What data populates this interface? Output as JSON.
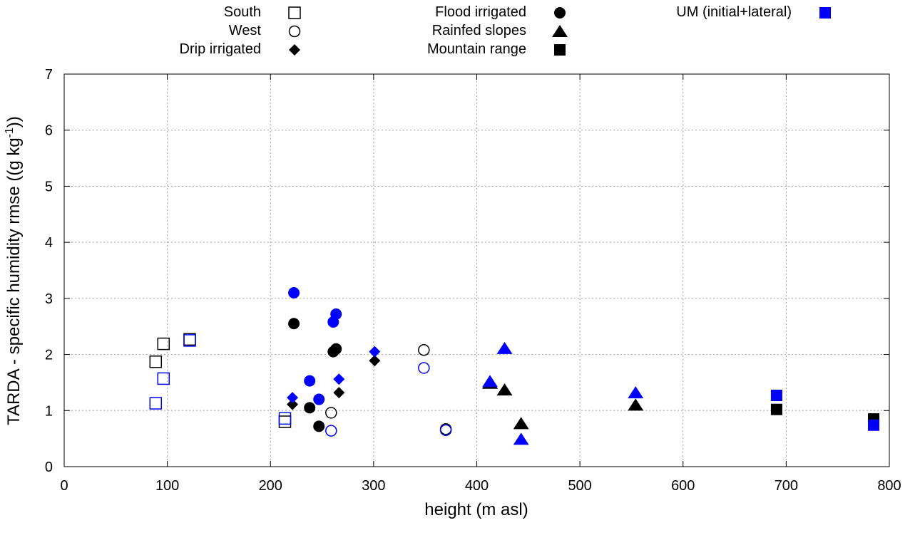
{
  "colors": {
    "tarda": "#000000",
    "um": "#0000ff",
    "grid": "#a0a0a0"
  },
  "chart_data": {
    "type": "scatter",
    "xlabel": "height (m asl)",
    "ylabel": "TARDA - specific humidity rmse ((g kg-1))",
    "ylabel_parts": {
      "main": "TARDA - specific humidity rmse ((g kg",
      "sup": "-1",
      "end": "))"
    },
    "xlim": [
      0,
      800
    ],
    "ylim": [
      0,
      7
    ],
    "xticks": [
      0,
      100,
      200,
      300,
      400,
      500,
      600,
      700,
      800
    ],
    "yticks": [
      0,
      1,
      2,
      3,
      4,
      5,
      6,
      7
    ],
    "grid": true,
    "legend_position": "top, outside plot, three columns",
    "legend": [
      {
        "label": "South",
        "marker": "open-square",
        "color": "#000000"
      },
      {
        "label": "West",
        "marker": "open-circle",
        "color": "#000000"
      },
      {
        "label": "Drip irrigated",
        "marker": "diamond",
        "color": "#000000"
      },
      {
        "label": "Flood irrigated",
        "marker": "circle",
        "color": "#000000"
      },
      {
        "label": "Rainfed slopes",
        "marker": "triangle",
        "color": "#000000"
      },
      {
        "label": "Mountain range",
        "marker": "square",
        "color": "#000000"
      },
      {
        "label": "UM (initial+lateral)",
        "marker": "square",
        "color": "#0000ff"
      }
    ],
    "series": [
      {
        "name": "South",
        "marker": "open-square",
        "color": "#000000",
        "points": [
          [
            88.7,
            1.87
          ],
          [
            96.3,
            2.19
          ],
          [
            121.7,
            2.27
          ],
          [
            214,
            0.8
          ]
        ]
      },
      {
        "name": "South (UM)",
        "marker": "open-square",
        "color": "#0000ff",
        "points": [
          [
            88.7,
            1.13
          ],
          [
            96.3,
            1.57
          ],
          [
            121.7,
            2.25
          ],
          [
            214,
            0.86
          ]
        ]
      },
      {
        "name": "West",
        "marker": "open-circle",
        "color": "#000000",
        "points": [
          [
            258.8,
            0.96
          ],
          [
            348.7,
            2.08
          ],
          [
            370,
            0.67
          ]
        ]
      },
      {
        "name": "West (UM)",
        "marker": "open-circle",
        "color": "#0000ff",
        "points": [
          [
            258.8,
            0.64
          ],
          [
            348.7,
            1.76
          ],
          [
            370,
            0.65
          ]
        ]
      },
      {
        "name": "Drip irrigated",
        "marker": "diamond",
        "color": "#000000",
        "points": [
          [
            221.3,
            1.11
          ],
          [
            266.4,
            1.32
          ],
          [
            301,
            1.89
          ]
        ]
      },
      {
        "name": "Drip irrigated (UM)",
        "marker": "diamond",
        "color": "#0000ff",
        "points": [
          [
            221.3,
            1.23
          ],
          [
            266.4,
            1.56
          ],
          [
            301,
            2.05
          ]
        ]
      },
      {
        "name": "Flood irrigated",
        "marker": "circle",
        "color": "#000000",
        "points": [
          [
            222.7,
            2.55
          ],
          [
            263.6,
            2.1
          ],
          [
            260.9,
            2.05
          ],
          [
            238,
            1.05
          ],
          [
            247,
            0.72
          ]
        ]
      },
      {
        "name": "Flood irrigated (UM)",
        "marker": "circle",
        "color": "#0000ff",
        "points": [
          [
            222.7,
            3.1
          ],
          [
            263.6,
            2.72
          ],
          [
            260.9,
            2.58
          ],
          [
            238,
            1.53
          ],
          [
            247,
            1.2
          ]
        ]
      },
      {
        "name": "Rainfed slopes",
        "marker": "triangle",
        "color": "#000000",
        "points": [
          [
            412.8,
            1.49
          ],
          [
            427,
            1.37
          ],
          [
            443,
            0.77
          ],
          [
            554,
            1.1
          ]
        ]
      },
      {
        "name": "Rainfed slopes (UM)",
        "marker": "triangle",
        "color": "#0000ff",
        "points": [
          [
            412.8,
            1.52
          ],
          [
            427,
            2.11
          ],
          [
            443,
            0.49
          ],
          [
            554,
            1.32
          ]
        ]
      },
      {
        "name": "Mountain range",
        "marker": "square",
        "color": "#000000",
        "points": [
          [
            690.7,
            1.02
          ],
          [
            784.8,
            0.85
          ]
        ]
      },
      {
        "name": "Mountain range (UM)",
        "marker": "square",
        "color": "#0000ff",
        "points": [
          [
            690.7,
            1.27
          ],
          [
            784.8,
            0.74
          ]
        ]
      }
    ]
  }
}
